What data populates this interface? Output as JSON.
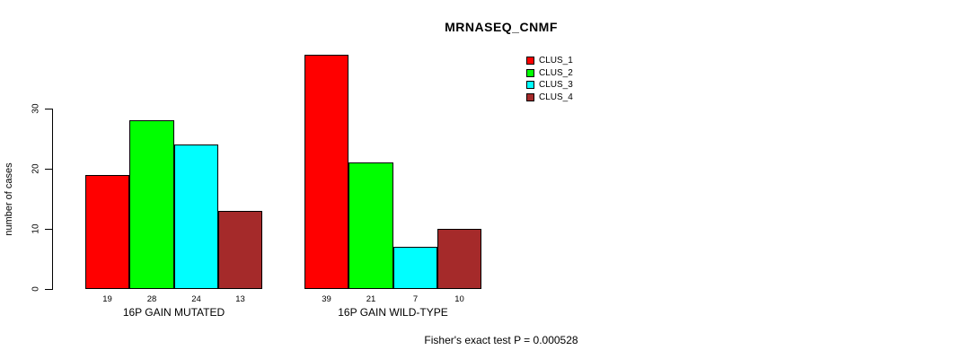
{
  "chart_data": {
    "type": "bar",
    "title": "MRNASEQ_CNMF",
    "xlabel": "",
    "ylabel": "number of cases",
    "categories": [
      "16P GAIN MUTATED",
      "16P GAIN WILD-TYPE"
    ],
    "series": [
      {
        "name": "CLUS_1",
        "color": "#ff0000",
        "values": [
          19,
          39
        ]
      },
      {
        "name": "CLUS_2",
        "color": "#00ff00",
        "values": [
          28,
          21
        ]
      },
      {
        "name": "CLUS_3",
        "color": "#00ffff",
        "values": [
          24,
          7
        ]
      },
      {
        "name": "CLUS_4",
        "color": "#a52a2a",
        "values": [
          13,
          10
        ]
      }
    ],
    "yticks": [
      0,
      10,
      20,
      30
    ],
    "ylim": [
      0,
      39
    ],
    "bar_value_labels": true,
    "grid": false,
    "legend_position": "top-right",
    "annotation": "Fisher's exact test P = 0.000528"
  }
}
